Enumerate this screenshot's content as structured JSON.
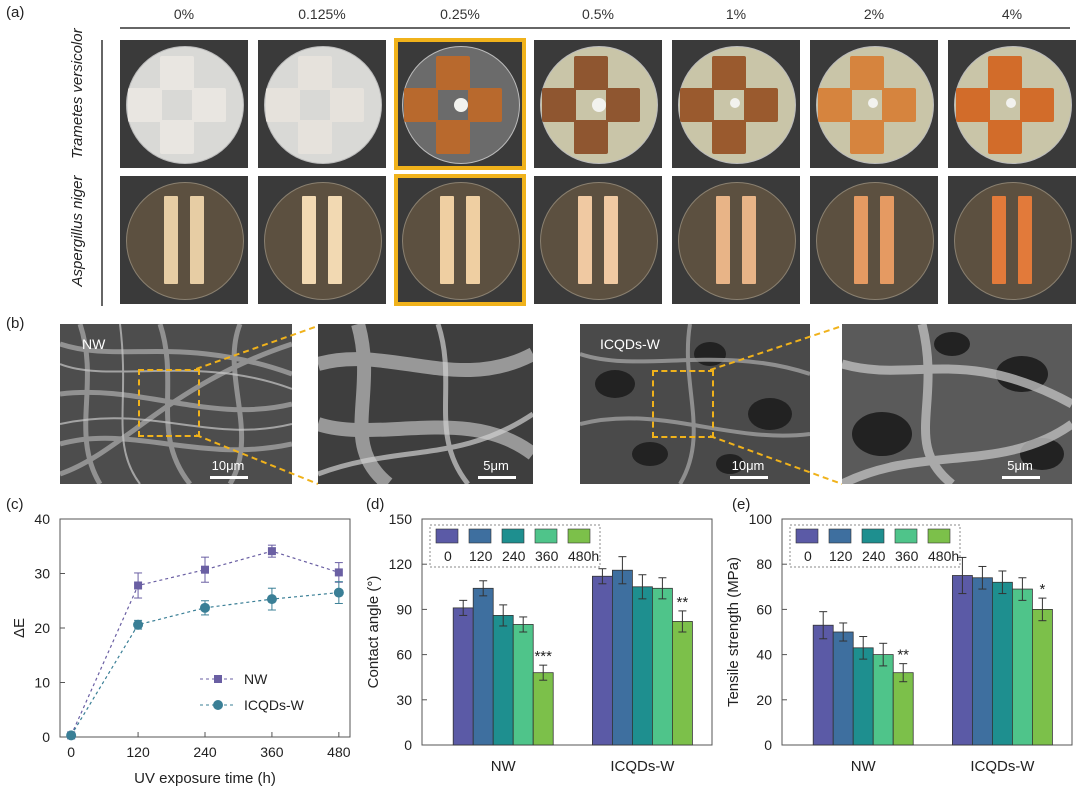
{
  "panel_labels": {
    "a": "(a)",
    "b": "(b)",
    "c": "(c)",
    "d": "(d)",
    "e": "(e)"
  },
  "concentrations": [
    "0%",
    "0.125%",
    "0.25%",
    "0.5%",
    "1%",
    "2%",
    "4%"
  ],
  "highlighted_concentration": "0.25%",
  "species": {
    "row1": "Trametes versicolor",
    "row2": "Aspergillus niger"
  },
  "wood_colors": [
    "#e9e6e1",
    "#e6e2dc",
    "#b8692d",
    "#8f5630",
    "#9a5a2e",
    "#d6843e",
    "#d26c2a"
  ],
  "strip_colors": [
    "#e7cda4",
    "#f2d9b2",
    "#efcfa2",
    "#f0c9a2",
    "#e8b487",
    "#e59a62",
    "#e27a3a"
  ],
  "highlight_color": "#f0b21b",
  "sem": {
    "nw_label": "NW",
    "icqds_label": "ICQDs-W",
    "scale_10": "10μm",
    "scale_5": "5μm"
  },
  "chart_data": [
    {
      "id": "c",
      "type": "line",
      "xlabel": "UV exposure time (h)",
      "ylabel": "ΔE",
      "x": [
        0,
        120,
        240,
        360,
        480
      ],
      "xticks": [
        "0",
        "120",
        "240",
        "360",
        "480"
      ],
      "ylim": [
        0,
        40
      ],
      "yticks": [
        "0",
        "10",
        "20",
        "30",
        "40"
      ],
      "legend_position": "lower-right",
      "series": [
        {
          "name": "NW",
          "marker": "square",
          "color": "#6a5fa3",
          "values": [
            0.3,
            27.8,
            30.7,
            34.1,
            30.2
          ],
          "errors": [
            0.3,
            2.3,
            2.3,
            1.1,
            1.8
          ]
        },
        {
          "name": "ICQDs-W",
          "marker": "circle",
          "color": "#3a7f96",
          "values": [
            0.3,
            20.6,
            23.7,
            25.3,
            26.5
          ],
          "errors": [
            0.3,
            0.8,
            1.3,
            2.0,
            2.0
          ]
        }
      ]
    },
    {
      "id": "d",
      "type": "bar",
      "ylabel": "Contact angle (°)",
      "categories": [
        "NW",
        "ICQDs-W"
      ],
      "ylim": [
        0,
        150
      ],
      "yticks": [
        "0",
        "30",
        "60",
        "90",
        "120",
        "150"
      ],
      "legend_labels": [
        "0",
        "120",
        "240",
        "360",
        "480h"
      ],
      "colors": [
        "#5b5aa6",
        "#3e6f9f",
        "#1e8f8f",
        "#4fc48a",
        "#7cc04a"
      ],
      "series": [
        {
          "values": [
            91,
            112
          ],
          "errors": [
            5,
            5
          ]
        },
        {
          "values": [
            104,
            116
          ],
          "errors": [
            5,
            9
          ]
        },
        {
          "values": [
            86,
            105
          ],
          "errors": [
            7,
            8
          ]
        },
        {
          "values": [
            80,
            104
          ],
          "errors": [
            5,
            7
          ]
        },
        {
          "values": [
            48,
            82
          ],
          "errors": [
            5,
            7
          ]
        }
      ],
      "annotations": [
        {
          "category": "NW",
          "text": "***"
        },
        {
          "category": "ICQDs-W",
          "text": "**"
        }
      ]
    },
    {
      "id": "e",
      "type": "bar",
      "ylabel": "Tensile strength (MPa)",
      "categories": [
        "NW",
        "ICQDs-W"
      ],
      "ylim": [
        0,
        100
      ],
      "yticks": [
        "0",
        "20",
        "40",
        "60",
        "80",
        "100"
      ],
      "legend_labels": [
        "0",
        "120",
        "240",
        "360",
        "480h"
      ],
      "colors": [
        "#5b5aa6",
        "#3e6f9f",
        "#1e8f8f",
        "#4fc48a",
        "#7cc04a"
      ],
      "series": [
        {
          "values": [
            53,
            75
          ],
          "errors": [
            6,
            8
          ]
        },
        {
          "values": [
            50,
            74
          ],
          "errors": [
            4,
            5
          ]
        },
        {
          "values": [
            43,
            72
          ],
          "errors": [
            5,
            5
          ]
        },
        {
          "values": [
            40,
            69
          ],
          "errors": [
            5,
            5
          ]
        },
        {
          "values": [
            32,
            60
          ],
          "errors": [
            4,
            5
          ]
        }
      ],
      "annotations": [
        {
          "category": "NW",
          "text": "**"
        },
        {
          "category": "ICQDs-W",
          "text": "*"
        }
      ]
    }
  ]
}
